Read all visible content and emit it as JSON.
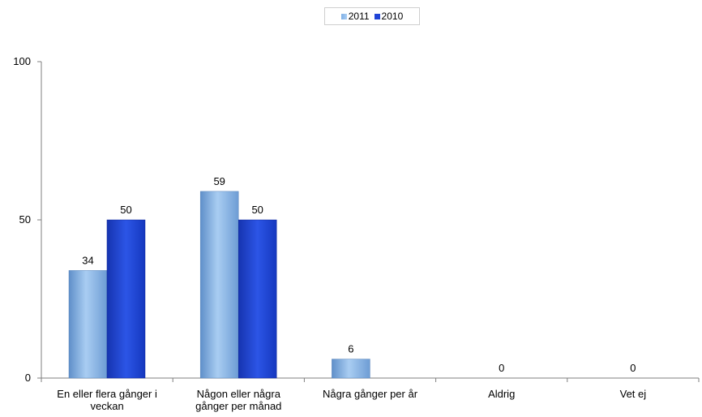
{
  "chart_data": {
    "type": "bar",
    "categories": [
      [
        "En eller flera gånger i",
        "veckan"
      ],
      [
        "Någon eller några",
        "gånger per månad"
      ],
      [
        "Några gånger per år"
      ],
      [
        "Aldrig"
      ],
      [
        "Vet ej"
      ]
    ],
    "series": [
      {
        "name": "2011",
        "values": [
          34,
          59,
          6,
          0,
          0
        ],
        "color": "#8fbbea"
      },
      {
        "name": "2010",
        "values": [
          50,
          50,
          null,
          null,
          null
        ],
        "color": "#1f43d6"
      }
    ],
    "yticks": [
      "0",
      "50",
      "100"
    ],
    "ylim": [
      0,
      100
    ],
    "grid": false,
    "legend_position": "top-center"
  }
}
